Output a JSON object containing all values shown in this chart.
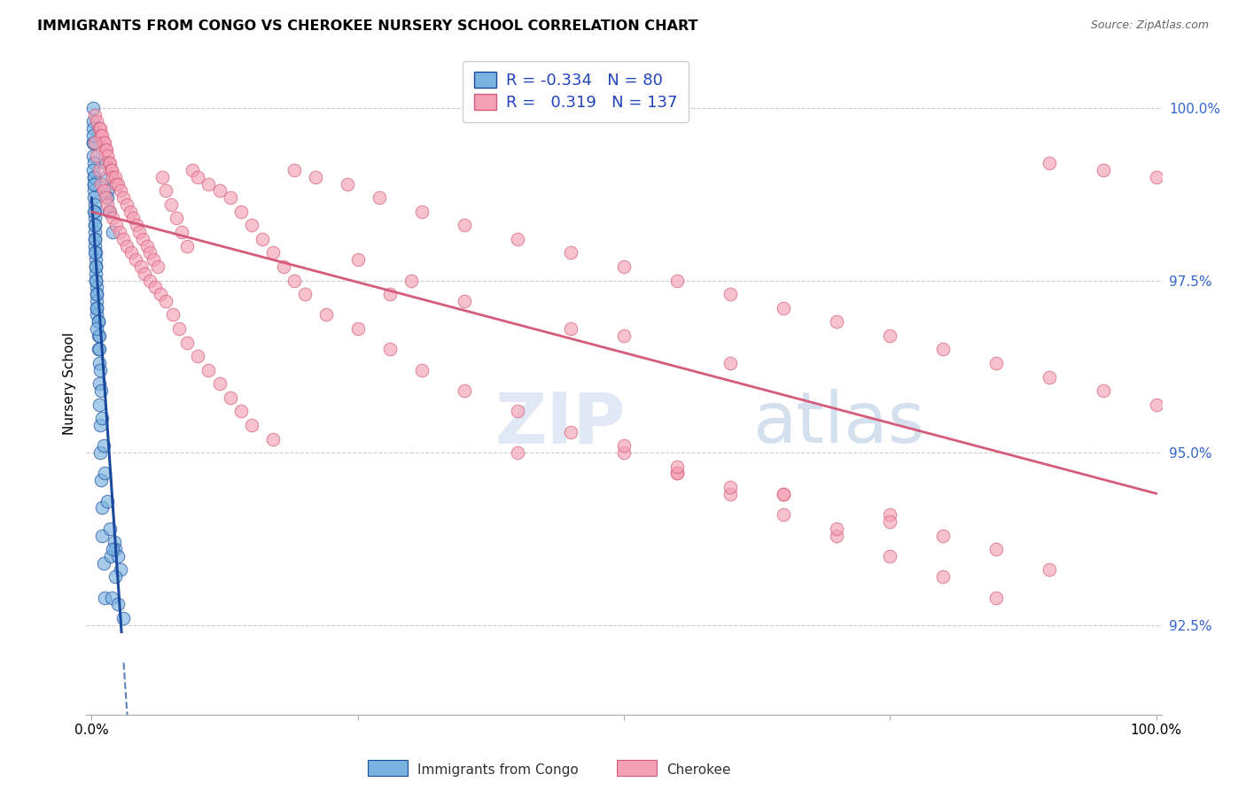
{
  "title": "IMMIGRANTS FROM CONGO VS CHEROKEE NURSERY SCHOOL CORRELATION CHART",
  "source": "Source: ZipAtlas.com",
  "ylabel": "Nursery School",
  "legend_blue_r": "-0.334",
  "legend_blue_n": "80",
  "legend_pink_r": "0.319",
  "legend_pink_n": "137",
  "legend_label_blue": "Immigrants from Congo",
  "legend_label_pink": "Cherokee",
  "blue_color": "#7ab3e0",
  "pink_color": "#f5a0b5",
  "blue_line_color": "#1a4a9e",
  "pink_line_color": "#d45c7a",
  "y_ticks": [
    92.5,
    95.0,
    97.5,
    100.0
  ],
  "y_tick_labels": [
    "92.5%",
    "95.0%",
    "97.5%",
    "100.0%"
  ],
  "blue_scatter_x": [
    0.001,
    0.001,
    0.001,
    0.001,
    0.001,
    0.002,
    0.002,
    0.002,
    0.002,
    0.002,
    0.003,
    0.003,
    0.003,
    0.003,
    0.003,
    0.003,
    0.003,
    0.004,
    0.004,
    0.004,
    0.004,
    0.004,
    0.005,
    0.005,
    0.005,
    0.005,
    0.005,
    0.006,
    0.006,
    0.006,
    0.007,
    0.007,
    0.007,
    0.008,
    0.008,
    0.009,
    0.01,
    0.01,
    0.011,
    0.012,
    0.013,
    0.014,
    0.015,
    0.015,
    0.016,
    0.018,
    0.019,
    0.02,
    0.021,
    0.022,
    0.025,
    0.027,
    0.03,
    0.001,
    0.001,
    0.002,
    0.002,
    0.003,
    0.003,
    0.004,
    0.005,
    0.005,
    0.006,
    0.007,
    0.007,
    0.008,
    0.009,
    0.01,
    0.011,
    0.012,
    0.015,
    0.017,
    0.02,
    0.022,
    0.025,
    0.001,
    0.002,
    0.003,
    0.004,
    0.005
  ],
  "blue_scatter_y": [
    100.0,
    99.8,
    99.7,
    99.5,
    99.3,
    99.2,
    99.0,
    98.9,
    98.8,
    98.7,
    98.6,
    98.5,
    98.4,
    98.3,
    98.2,
    98.1,
    98.0,
    97.9,
    97.8,
    97.7,
    97.6,
    97.5,
    97.4,
    97.3,
    97.2,
    97.1,
    97.0,
    96.9,
    96.7,
    96.5,
    96.3,
    96.0,
    95.7,
    95.4,
    95.0,
    94.6,
    94.2,
    93.8,
    93.4,
    92.9,
    99.2,
    99.0,
    98.8,
    98.7,
    98.5,
    93.5,
    92.9,
    98.2,
    93.7,
    93.6,
    93.5,
    93.3,
    92.6,
    99.5,
    99.1,
    99.0,
    98.5,
    98.3,
    97.9,
    97.7,
    97.3,
    97.1,
    96.9,
    96.7,
    96.5,
    96.2,
    95.9,
    95.5,
    95.1,
    94.7,
    94.3,
    93.9,
    93.6,
    93.2,
    92.8,
    99.6,
    98.9,
    98.1,
    97.5,
    96.8
  ],
  "pink_scatter_x": [
    0.003,
    0.005,
    0.007,
    0.008,
    0.009,
    0.01,
    0.011,
    0.012,
    0.013,
    0.014,
    0.015,
    0.016,
    0.017,
    0.018,
    0.019,
    0.02,
    0.022,
    0.023,
    0.025,
    0.027,
    0.03,
    0.033,
    0.036,
    0.039,
    0.042,
    0.045,
    0.048,
    0.052,
    0.055,
    0.058,
    0.062,
    0.066,
    0.07,
    0.075,
    0.08,
    0.085,
    0.09,
    0.095,
    0.1,
    0.11,
    0.12,
    0.13,
    0.14,
    0.15,
    0.16,
    0.17,
    0.18,
    0.19,
    0.2,
    0.22,
    0.25,
    0.28,
    0.31,
    0.35,
    0.4,
    0.45,
    0.5,
    0.55,
    0.6,
    0.65,
    0.7,
    0.75,
    0.8,
    0.85,
    0.9,
    0.95,
    1.0,
    0.003,
    0.005,
    0.007,
    0.009,
    0.011,
    0.013,
    0.015,
    0.017,
    0.02,
    0.023,
    0.026,
    0.03,
    0.033,
    0.037,
    0.041,
    0.046,
    0.05,
    0.055,
    0.06,
    0.065,
    0.07,
    0.076,
    0.082,
    0.09,
    0.1,
    0.11,
    0.12,
    0.13,
    0.14,
    0.15,
    0.17,
    0.19,
    0.21,
    0.24,
    0.27,
    0.31,
    0.35,
    0.4,
    0.45,
    0.5,
    0.55,
    0.6,
    0.65,
    0.7,
    0.75,
    0.8,
    0.85,
    0.9,
    0.95,
    1.0,
    0.4,
    0.55,
    0.65,
    0.75,
    0.8,
    0.45,
    0.6,
    0.35,
    0.5,
    0.3,
    0.25,
    0.28,
    0.55,
    0.65,
    0.75,
    0.85,
    0.9,
    0.7,
    0.6,
    0.5
  ],
  "pink_scatter_y": [
    99.9,
    99.8,
    99.7,
    99.7,
    99.6,
    99.6,
    99.5,
    99.5,
    99.4,
    99.4,
    99.3,
    99.2,
    99.2,
    99.1,
    99.1,
    99.0,
    99.0,
    98.9,
    98.9,
    98.8,
    98.7,
    98.6,
    98.5,
    98.4,
    98.3,
    98.2,
    98.1,
    98.0,
    97.9,
    97.8,
    97.7,
    99.0,
    98.8,
    98.6,
    98.4,
    98.2,
    98.0,
    99.1,
    99.0,
    98.9,
    98.8,
    98.7,
    98.5,
    98.3,
    98.1,
    97.9,
    97.7,
    97.5,
    97.3,
    97.0,
    96.8,
    96.5,
    96.2,
    95.9,
    95.6,
    95.3,
    95.0,
    94.7,
    94.4,
    94.1,
    93.8,
    93.5,
    93.2,
    92.9,
    99.2,
    99.1,
    99.0,
    99.5,
    99.3,
    99.1,
    98.9,
    98.8,
    98.7,
    98.6,
    98.5,
    98.4,
    98.3,
    98.2,
    98.1,
    98.0,
    97.9,
    97.8,
    97.7,
    97.6,
    97.5,
    97.4,
    97.3,
    97.2,
    97.0,
    96.8,
    96.6,
    96.4,
    96.2,
    96.0,
    95.8,
    95.6,
    95.4,
    95.2,
    99.1,
    99.0,
    98.9,
    98.7,
    98.5,
    98.3,
    98.1,
    97.9,
    97.7,
    97.5,
    97.3,
    97.1,
    96.9,
    96.7,
    96.5,
    96.3,
    96.1,
    95.9,
    95.7,
    95.0,
    94.7,
    94.4,
    94.1,
    93.8,
    96.8,
    96.3,
    97.2,
    96.7,
    97.5,
    97.8,
    97.3,
    94.8,
    94.4,
    94.0,
    93.6,
    93.3,
    93.9,
    94.5,
    95.1
  ]
}
